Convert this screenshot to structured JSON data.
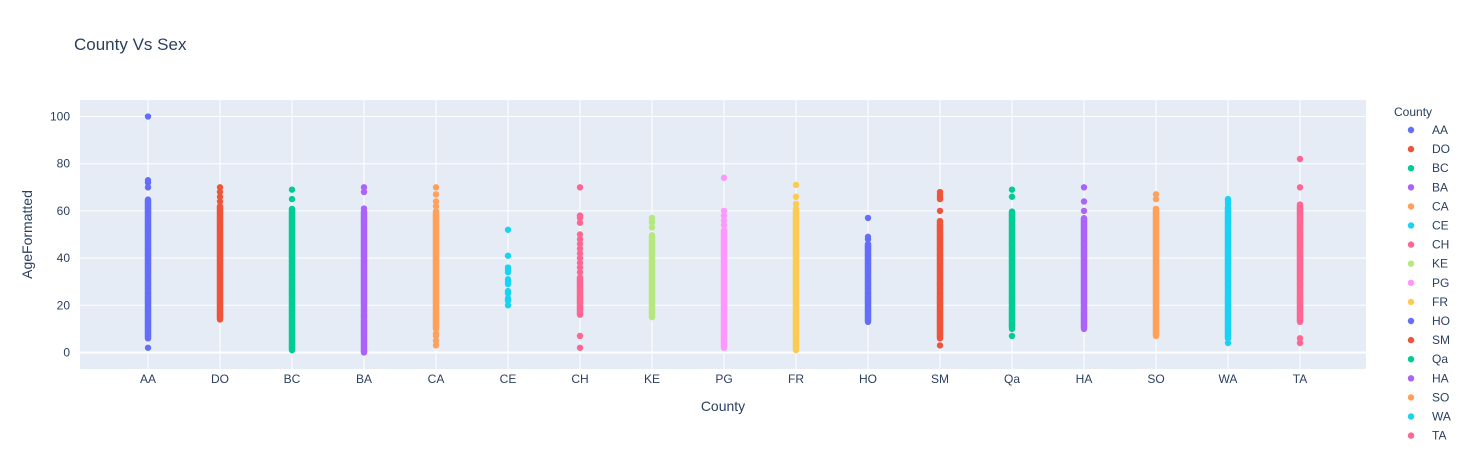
{
  "chart_data": {
    "type": "scatter",
    "title": "County Vs Sex",
    "xlabel": "County",
    "ylabel": "AgeFormatted",
    "ylim": [
      -7,
      107
    ],
    "yticks": [
      0,
      20,
      40,
      60,
      80,
      100
    ],
    "categories": [
      "AA",
      "DO",
      "BC",
      "BA",
      "CA",
      "CE",
      "CH",
      "KE",
      "PG",
      "FR",
      "HO",
      "SM",
      "Qa",
      "HA",
      "SO",
      "WA",
      "TA"
    ],
    "legend_title": "County",
    "legend_position": "right",
    "grid": true,
    "series": [
      {
        "name": "AA",
        "color": "#636efa",
        "x": "AA",
        "dense": [
          6,
          65
        ],
        "points": [
          2,
          70,
          72,
          73,
          100
        ]
      },
      {
        "name": "DO",
        "color": "#ef553b",
        "x": "DO",
        "dense": [
          14,
          62
        ],
        "points": [
          64,
          66,
          68,
          70
        ]
      },
      {
        "name": "BC",
        "color": "#00cc96",
        "x": "BC",
        "dense": [
          1,
          61
        ],
        "points": [
          65,
          69
        ]
      },
      {
        "name": "BA",
        "color": "#ab63fa",
        "x": "BA",
        "dense": [
          0,
          60
        ],
        "points": [
          61,
          68,
          70
        ]
      },
      {
        "name": "CA",
        "color": "#ffa15a",
        "x": "CA",
        "dense": [
          10,
          60
        ],
        "points": [
          3,
          5,
          7,
          8,
          62,
          64,
          67,
          70
        ]
      },
      {
        "name": "CE",
        "color": "#19d3f3",
        "x": "CE",
        "dense": null,
        "points": [
          20,
          22,
          23,
          25,
          26,
          29,
          30,
          31,
          34,
          35,
          36,
          41,
          52
        ]
      },
      {
        "name": "CH",
        "color": "#ff6692",
        "x": "CH",
        "dense": [
          16,
          32
        ],
        "points": [
          2,
          7,
          34,
          36,
          38,
          40,
          42,
          44,
          46,
          48,
          50,
          55,
          57,
          58,
          70
        ]
      },
      {
        "name": "KE",
        "color": "#b6e880",
        "x": "KE",
        "dense": [
          15,
          50
        ],
        "points": [
          53,
          55,
          56,
          57
        ]
      },
      {
        "name": "PG",
        "color": "#ff97ff",
        "x": "PG",
        "dense": [
          2,
          52
        ],
        "points": [
          54,
          56,
          58,
          60,
          74
        ]
      },
      {
        "name": "FR",
        "color": "#fecb52",
        "x": "FR",
        "dense": [
          1,
          61
        ],
        "points": [
          63,
          66,
          71
        ]
      },
      {
        "name": "HO",
        "color": "#636efa",
        "x": "HO",
        "dense": [
          13,
          46
        ],
        "points": [
          48,
          49,
          57
        ]
      },
      {
        "name": "SM",
        "color": "#ef553b",
        "x": "SM",
        "dense": [
          6,
          56
        ],
        "points": [
          3,
          60,
          65,
          66,
          67,
          68
        ]
      },
      {
        "name": "Qa",
        "color": "#00cc96",
        "x": "Qa",
        "dense": [
          10,
          60
        ],
        "points": [
          7,
          66,
          69
        ]
      },
      {
        "name": "HA",
        "color": "#ab63fa",
        "x": "HA",
        "dense": [
          10,
          57
        ],
        "points": [
          60,
          64,
          70
        ]
      },
      {
        "name": "SO",
        "color": "#ffa15a",
        "x": "SO",
        "dense": [
          7,
          61
        ],
        "points": [
          65,
          67
        ]
      },
      {
        "name": "WA",
        "color": "#19d3f3",
        "x": "WA",
        "dense": [
          6,
          62
        ],
        "points": [
          4,
          63,
          64,
          65
        ]
      },
      {
        "name": "TA",
        "color": "#ff6692",
        "x": "TA",
        "dense": [
          13,
          63
        ],
        "points": [
          4,
          6,
          70,
          82
        ]
      }
    ]
  }
}
